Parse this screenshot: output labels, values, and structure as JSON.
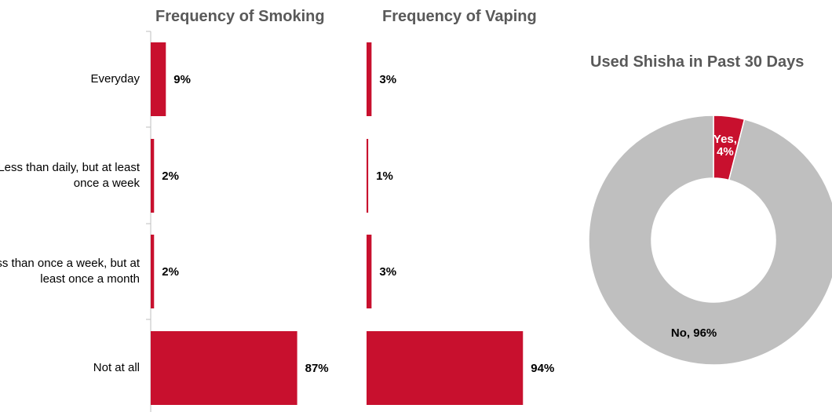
{
  "colors": {
    "bar": "#c8102e",
    "no": "#bfbfbf",
    "axis": "#bfbfbf",
    "title": "#595959"
  },
  "chart_data": [
    {
      "type": "bar",
      "orientation": "horizontal",
      "title": "Frequency of Smoking",
      "categories": [
        "Everyday",
        "Less than daily, but at least once a week",
        "Less than once a week, but at least once a month",
        "Not at all"
      ],
      "values": [
        9,
        2,
        2,
        87
      ],
      "value_labels": [
        "9%",
        "2%",
        "2%",
        "87%"
      ],
      "xlim": [
        0,
        100
      ]
    },
    {
      "type": "bar",
      "orientation": "horizontal",
      "title": "Frequency of Vaping",
      "categories": [
        "Everyday",
        "Less than daily, but at least once a week",
        "Less than once a week, but at least once a month",
        "Not at all"
      ],
      "values": [
        3,
        1,
        3,
        94
      ],
      "value_labels": [
        "3%",
        "1%",
        "3%",
        "94%"
      ],
      "xlim": [
        0,
        100
      ]
    },
    {
      "type": "pie",
      "style": "donut",
      "title": "Used Shisha in Past 30 Days",
      "labels": [
        "Yes",
        "No"
      ],
      "values": [
        4,
        96
      ],
      "slice_label_lines": [
        [
          "Yes,",
          "4%"
        ],
        [
          "No, 96%"
        ]
      ]
    }
  ]
}
